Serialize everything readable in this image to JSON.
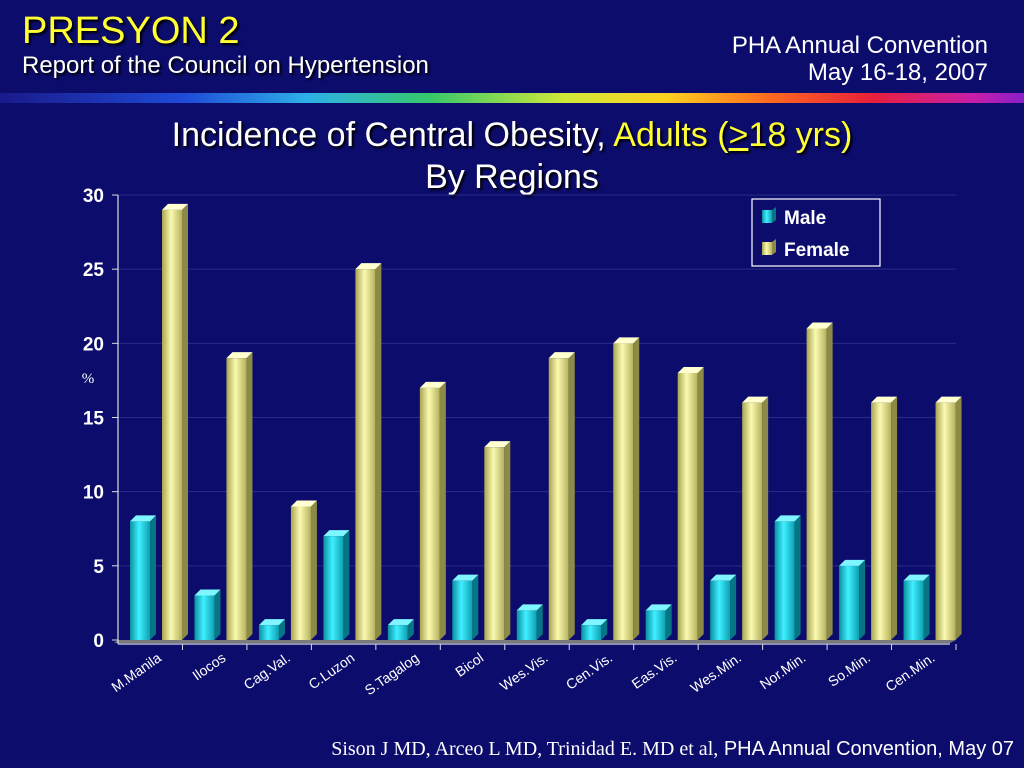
{
  "header": {
    "title": "PRESYON 2",
    "subtitle": "Report of the Council on Hypertension",
    "event_line1": "PHA Annual Convention",
    "event_line2": "May 16-18, 2007"
  },
  "title_parts": {
    "main": "Incidence of Central Obesity,",
    "adults": "Adults (",
    "gte": ">",
    "age": "18 yrs)",
    "line2": "By Regions"
  },
  "footer": {
    "authors": "Sison J MD, Arceo L MD, Trinidad E. MD et al,",
    "event": "PHA Annual Convention, May 07"
  },
  "colors": {
    "background": "#0c0c6c",
    "male": "#19d7e6",
    "female": "#ecea8a",
    "accent_yellow": "#ffff33"
  },
  "chart_data": {
    "type": "bar",
    "categories": [
      "M.Manila",
      "Ilocos",
      "Cag.Val.",
      "C.Luzon",
      "S.Tagalog",
      "Bicol",
      "Wes.Vis.",
      "Cen.Vis.",
      "Eas.Vis.",
      "Wes.Min.",
      "Nor.Min.",
      "So.Min.",
      "Cen.Min."
    ],
    "series": [
      {
        "name": "Male",
        "values": [
          8,
          3,
          1,
          7,
          1,
          4,
          2,
          1,
          2,
          4,
          8,
          5,
          4
        ]
      },
      {
        "name": "Female",
        "values": [
          29,
          19,
          9,
          25,
          17,
          13,
          19,
          20,
          18,
          16,
          21,
          16,
          16
        ]
      }
    ],
    "ylabel": "%",
    "ylim": [
      0,
      30
    ],
    "yticks": [
      0,
      5,
      10,
      15,
      20,
      25,
      30
    ],
    "grid": true,
    "legend": "top-right"
  }
}
